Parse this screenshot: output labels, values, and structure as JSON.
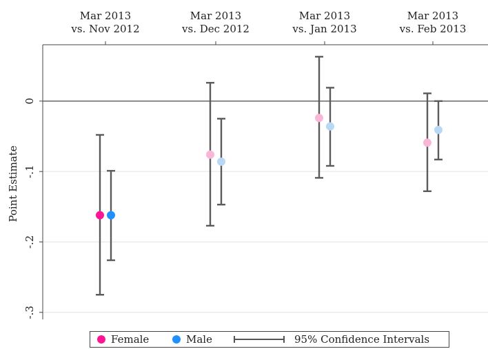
{
  "chart_data": {
    "type": "scatter",
    "title": "",
    "ylabel": "Point Estimate",
    "ylim": [
      -0.31,
      0.08
    ],
    "yticks": [
      0,
      -0.1,
      -0.2,
      -0.3
    ],
    "ytick_labels": [
      "0",
      "-.1",
      "-.2",
      "-.3"
    ],
    "reference_line": 0,
    "categories": [
      [
        "Mar 2013",
        "vs. Nov 2012"
      ],
      [
        "Mar 2013",
        "vs. Dec 2012"
      ],
      [
        "Mar 2013",
        "vs. Jan 2013"
      ],
      [
        "Mar 2013",
        "vs. Feb 2013"
      ]
    ],
    "series": [
      {
        "name": "Female",
        "color": "#ff1493",
        "point_colors": [
          "#ff1493",
          "#f9b6d6",
          "#f9b6d6",
          "#f9b6d6"
        ],
        "values": [
          -0.162,
          -0.076,
          -0.024,
          -0.059
        ],
        "ci_lower": [
          -0.275,
          -0.177,
          -0.109,
          -0.128
        ],
        "ci_upper": [
          -0.048,
          0.026,
          0.063,
          0.011
        ]
      },
      {
        "name": "Male",
        "color": "#1e90ff",
        "point_colors": [
          "#1e90ff",
          "#b9d8f5",
          "#b9d8f5",
          "#b9d8f5"
        ],
        "values": [
          -0.162,
          -0.086,
          -0.036,
          -0.041
        ],
        "ci_lower": [
          -0.226,
          -0.147,
          -0.092,
          -0.083
        ],
        "ci_upper": [
          -0.099,
          -0.025,
          0.019,
          0.0
        ]
      }
    ],
    "legend": {
      "position": "bottom",
      "entries": [
        "Female",
        "Male",
        "95% Confidence Intervals"
      ]
    },
    "grid": true
  }
}
